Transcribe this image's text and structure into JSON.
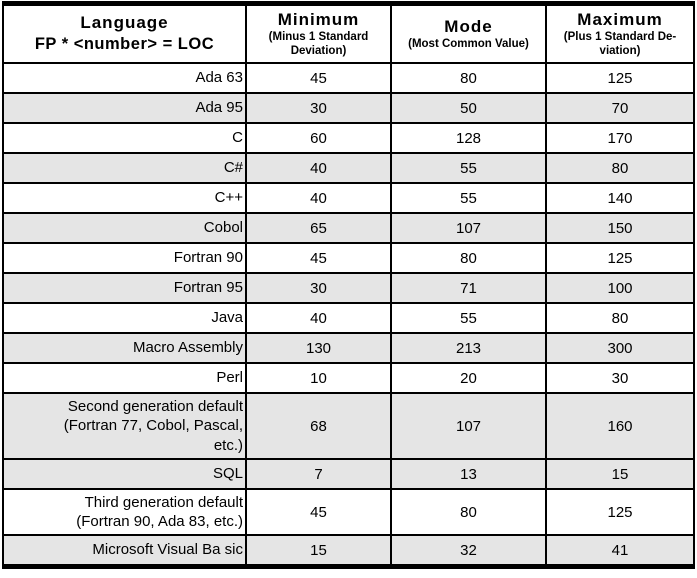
{
  "colors": {
    "border": "#000000",
    "row_shade": "#e5e5e5",
    "background": "#ffffff",
    "text": "#000000"
  },
  "chart_data": {
    "type": "table",
    "title": "",
    "columns": [
      {
        "title": "Language",
        "subtitle": "FP * <number> = LOC"
      },
      {
        "title": "Minimum",
        "subtitle": "(Minus 1 Standard Deviation)"
      },
      {
        "title": "Mode",
        "subtitle": "(Most Common Value)"
      },
      {
        "title": "Maximum",
        "subtitle": "(Plus 1 Standard De-viation)"
      }
    ],
    "rows": [
      {
        "language": "Ada 63",
        "min": 45,
        "mode": 80,
        "max": 125,
        "shaded": false
      },
      {
        "language": "Ada 95",
        "min": 30,
        "mode": 50,
        "max": 70,
        "shaded": true
      },
      {
        "language": "C",
        "min": 60,
        "mode": 128,
        "max": 170,
        "shaded": false
      },
      {
        "language": "C#",
        "min": 40,
        "mode": 55,
        "max": 80,
        "shaded": true
      },
      {
        "language": "C++",
        "min": 40,
        "mode": 55,
        "max": 140,
        "shaded": false
      },
      {
        "language": "Cobol",
        "min": 65,
        "mode": 107,
        "max": 150,
        "shaded": true
      },
      {
        "language": "Fortran 90",
        "min": 45,
        "mode": 80,
        "max": 125,
        "shaded": false
      },
      {
        "language": "Fortran 95",
        "min": 30,
        "mode": 71,
        "max": 100,
        "shaded": true
      },
      {
        "language": "Java",
        "min": 40,
        "mode": 55,
        "max": 80,
        "shaded": false
      },
      {
        "language": "Macro Assembly",
        "min": 130,
        "mode": 213,
        "max": 300,
        "shaded": true
      },
      {
        "language": "Perl",
        "min": 10,
        "mode": 20,
        "max": 30,
        "shaded": false
      },
      {
        "language": "Second generation default\n(Fortran 77, Cobol, Pascal,\netc.)",
        "min": 68,
        "mode": 107,
        "max": 160,
        "shaded": true
      },
      {
        "language": "SQL",
        "min": 7,
        "mode": 13,
        "max": 15,
        "shaded": true
      },
      {
        "language": "Third generation default\n(Fortran 90, Ada 83, etc.)",
        "min": 45,
        "mode": 80,
        "max": 125,
        "shaded": false
      },
      {
        "language": "Microsoft Visual Ba sic",
        "min": 15,
        "mode": 32,
        "max": 41,
        "shaded": true
      }
    ]
  }
}
